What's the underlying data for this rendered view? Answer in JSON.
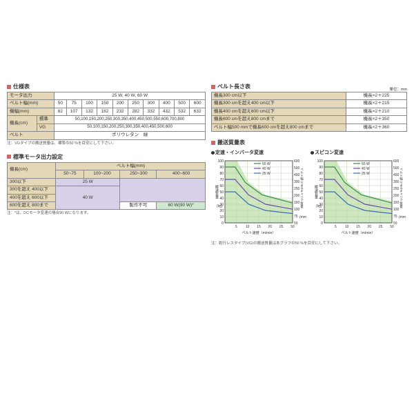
{
  "specTable": {
    "title": "仕様表",
    "rows": [
      {
        "label": "モータ出力",
        "cells": [
          "25 W, 40 W, 60 W"
        ],
        "colspan": 11
      },
      {
        "label": "ベルト幅(mm)",
        "cells": [
          "50",
          "75",
          "100",
          "150",
          "200",
          "250",
          "300",
          "400",
          "500",
          "600"
        ]
      },
      {
        "label": "機幅(mm)",
        "cells": [
          "82",
          "107",
          "132",
          "182",
          "232",
          "282",
          "332",
          "432",
          "532",
          "632"
        ]
      },
      {
        "label": "機長(cm)",
        "sublabel1": "標準",
        "cells1": [
          "50,100,150,200,250,300,350,400,450,500,550,600,700,800"
        ],
        "sublabel2": "VG",
        "cells2": [
          "50,100,150,200,250,300,350,400,450,500,600"
        ]
      },
      {
        "label": "ベルト",
        "cells": [
          "ポリウレタン　緑"
        ],
        "colspan": 11
      }
    ],
    "note": "注：VGタイプの搬送質量は、標準の50 %を目安にして下さい。"
  },
  "motorTable": {
    "title": "標準モータ出力設定",
    "rowHeader": "機長(cm)",
    "colHeader": "ベルト幅(mm)",
    "cols": [
      "50~75",
      "100~200",
      "250~300",
      "400~600"
    ],
    "rows": [
      "300以下",
      "300を超え 400以下",
      "400を超え 600以下",
      "600を超え 800まで"
    ],
    "cell25W": "25 W",
    "cell40W": "40 W",
    "cellNA": "製作不可",
    "cell60W": "60 W(90 W)*",
    "note": "注：*は、DCモータ変速の場合90 Wになります。"
  },
  "lengthTable": {
    "title": "ベルト長さ表",
    "unit": "単位：mm",
    "rows": [
      [
        "機長300 cm以下",
        "機長×2＋225"
      ],
      [
        "機長300 cmを超え400 cm以下",
        "機長×2＋215"
      ],
      [
        "機長400 cmを超え600 cm以下",
        "機長×2＋210"
      ],
      [
        "機長600 cmを超え800 cmまで",
        "機長×2＋350"
      ],
      [
        "ベルト幅500 mmで機長600 cmを超え800 cmまで",
        "機長×2＋360"
      ]
    ]
  },
  "massCharts": {
    "title": "搬送質量表",
    "chart1": {
      "title": "定速・インバータ変速"
    },
    "chart2": {
      "title": "スピコン変速"
    },
    "ylabel": "搬送質量",
    "yunit": "(kg)",
    "xlabel": "ベルト速度（m/min）",
    "rightLabel": "ベルト幅によるキャリア質量",
    "rightUnit": "(mm)",
    "xticks": [
      "5",
      "10",
      "15",
      "20",
      "25",
      "50"
    ],
    "yticks": [
      "0",
      "10",
      "20",
      "30",
      "40",
      "50",
      "60",
      "70",
      "80",
      "90",
      "100"
    ],
    "rticks": [
      "50",
      "75",
      "100",
      "150",
      "200",
      "250",
      "300",
      "400",
      "500",
      "600"
    ],
    "legend": [
      {
        "label": "60 W",
        "color": "#3a8a4a"
      },
      {
        "label": "40 W",
        "color": "#6a4aa8"
      },
      {
        "label": "25 W",
        "color": "#3a6ab0"
      }
    ],
    "shadeColor": "#cde8c0",
    "gridColor": "#b0c890",
    "note": "注：蛇行レスタイプ(VG)の搬送質量は本グラフの50 %を目安にして下さい。"
  }
}
